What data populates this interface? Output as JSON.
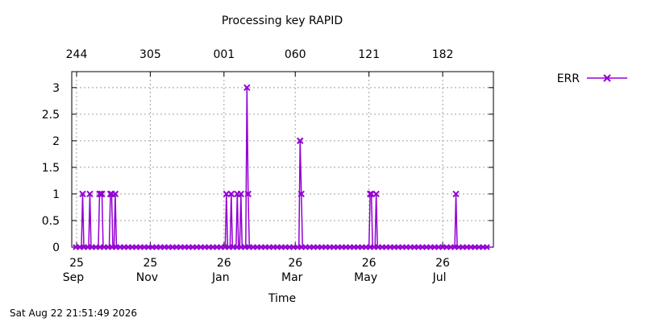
{
  "footer": {
    "timestamp": "Sat Aug 22 21:51:49 2026"
  },
  "chart_data": {
    "type": "line",
    "title": "Processing key RAPID",
    "xlabel": "Time",
    "ylabel": "",
    "x_axis_kind": "date",
    "xlim": [
      "2025-08-28",
      "2026-08-12"
    ],
    "ylim": [
      0,
      3.3
    ],
    "y_ticks": [
      0,
      0.5,
      1,
      1.5,
      2,
      2.5,
      3
    ],
    "y_tick_labels": [
      "0",
      "0.5",
      "1",
      "1.5",
      "2",
      "2.5",
      "3"
    ],
    "bottom_ticks": [
      {
        "date": "2025-09-01",
        "label_top": "25",
        "label_bottom": "Sep"
      },
      {
        "date": "2025-11-01",
        "label_top": "25",
        "label_bottom": "Nov"
      },
      {
        "date": "2026-01-01",
        "label_top": "26",
        "label_bottom": "Jan"
      },
      {
        "date": "2026-03-01",
        "label_top": "26",
        "label_bottom": "Mar"
      },
      {
        "date": "2026-05-01",
        "label_top": "26",
        "label_bottom": "May"
      },
      {
        "date": "2026-07-01",
        "label_top": "26",
        "label_bottom": "Jul"
      }
    ],
    "top_ticks": [
      {
        "date": "2025-09-01",
        "label": "244"
      },
      {
        "date": "2025-11-01",
        "label": "305"
      },
      {
        "date": "2026-01-01",
        "label": "001"
      },
      {
        "date": "2026-03-01",
        "label": "060"
      },
      {
        "date": "2026-05-01",
        "label": "121"
      },
      {
        "date": "2026-07-01",
        "label": "182"
      }
    ],
    "grid": true,
    "legend_position": "top-right",
    "series": [
      {
        "name": "ERR",
        "color": "#9400d3",
        "marker": "x",
        "points": [
          [
            "2025-08-28",
            0
          ],
          [
            "2025-09-05",
            0
          ],
          [
            "2025-09-06",
            1
          ],
          [
            "2025-09-07",
            0
          ],
          [
            "2025-09-11",
            0
          ],
          [
            "2025-09-12",
            1
          ],
          [
            "2025-09-13",
            0
          ],
          [
            "2025-09-19",
            0
          ],
          [
            "2025-09-20",
            1
          ],
          [
            "2025-09-21",
            1
          ],
          [
            "2025-09-22",
            1
          ],
          [
            "2025-09-23",
            0
          ],
          [
            "2025-09-28",
            0
          ],
          [
            "2025-09-29",
            1
          ],
          [
            "2025-09-30",
            1
          ],
          [
            "2025-10-01",
            0
          ],
          [
            "2025-10-02",
            0
          ],
          [
            "2025-10-03",
            1
          ],
          [
            "2025-10-04",
            0
          ],
          [
            "2026-01-02",
            0
          ],
          [
            "2026-01-03",
            1
          ],
          [
            "2026-01-04",
            0
          ],
          [
            "2026-01-06",
            0
          ],
          [
            "2026-01-07",
            1
          ],
          [
            "2026-01-08",
            0
          ],
          [
            "2026-01-11",
            0
          ],
          [
            "2026-01-12",
            1
          ],
          [
            "2026-01-13",
            0
          ],
          [
            "2026-01-14",
            0
          ],
          [
            "2026-01-15",
            1
          ],
          [
            "2026-01-16",
            0
          ],
          [
            "2026-01-19",
            0
          ],
          [
            "2026-01-20",
            3
          ],
          [
            "2026-01-21",
            1
          ],
          [
            "2026-01-22",
            0
          ],
          [
            "2026-03-04",
            0
          ],
          [
            "2026-03-05",
            2
          ],
          [
            "2026-03-06",
            1
          ],
          [
            "2026-03-07",
            0
          ],
          [
            "2026-05-01",
            0
          ],
          [
            "2026-05-02",
            1
          ],
          [
            "2026-05-03",
            1
          ],
          [
            "2026-05-04",
            0
          ],
          [
            "2026-05-06",
            0
          ],
          [
            "2026-05-07",
            1
          ],
          [
            "2026-05-08",
            0
          ],
          [
            "2026-07-11",
            0
          ],
          [
            "2026-07-12",
            1
          ],
          [
            "2026-07-13",
            0
          ],
          [
            "2026-08-12",
            0
          ]
        ]
      }
    ]
  }
}
